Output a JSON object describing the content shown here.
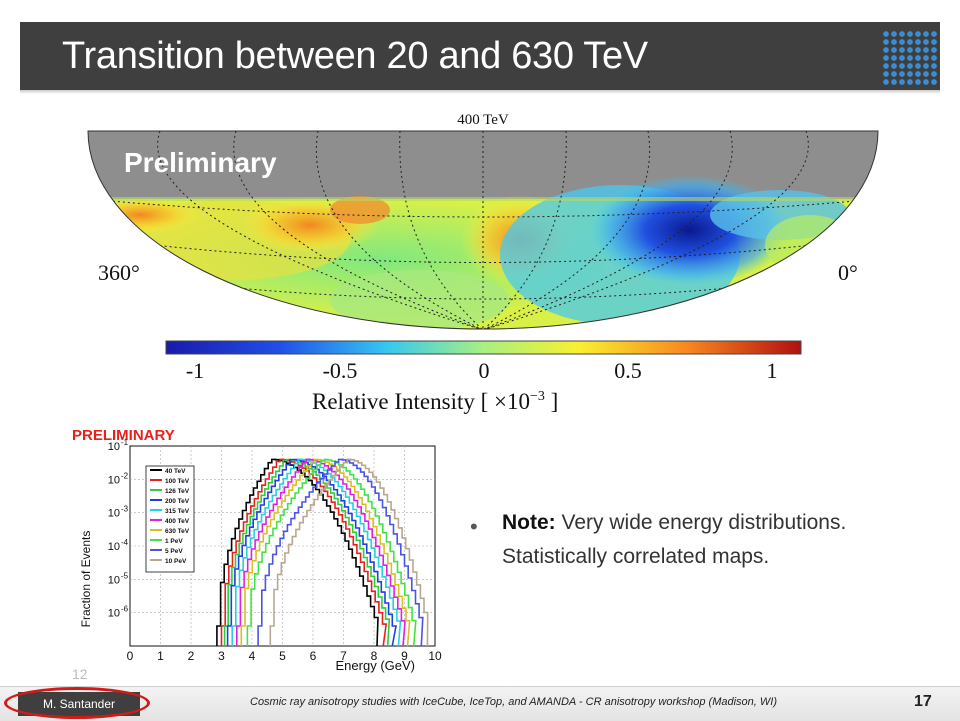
{
  "slide": {
    "title": "Transition between 20 and 630 TeV",
    "skymap": {
      "energy_label": "400 TeV",
      "watermark": "Preliminary",
      "ra_left": "360°",
      "ra_right": "0°",
      "colorbar_ticks": [
        "-1",
        "-0.5",
        "0",
        "0.5",
        "1"
      ],
      "colorbar_label": "Relative Intensity [ ×10",
      "colorbar_exponent": "−3",
      "colorbar_label_end": " ]"
    },
    "inset": {
      "preliminary": "PRELIMINARY",
      "ylabel": "Fraction of Events",
      "xlabel": "Energy (GeV)",
      "xticks": [
        "0",
        "1",
        "2",
        "3",
        "4",
        "5",
        "6",
        "7",
        "8",
        "9",
        "10"
      ],
      "yticks": [
        "10",
        "10",
        "10",
        "10",
        "10",
        "10"
      ],
      "ytick_exponents": [
        "-1",
        "-2",
        "-3",
        "-4",
        "-5",
        "-6"
      ],
      "legend": [
        "40 TeV",
        "100 TeV",
        "126 TeV",
        "200 TeV",
        "315 TeV",
        "400 TeV",
        "630 TeV",
        "1 PeV",
        "5 PeV",
        "10 PeV"
      ]
    },
    "note": {
      "bullet": "•",
      "lead": "Note:",
      "text": " Very wide energy distributions. Statistically correlated maps."
    },
    "ghost_number": "12",
    "footer": {
      "author": "M. Santander",
      "citation": "Cosmic ray anisotropy studies with IceCube, IceTop, and AMANDA - CR anisotropy workshop (Madison, WI)",
      "page": "17"
    }
  },
  "colors": {
    "title_bar": "#3f3f3f",
    "highlight_ellipse": "#d11a1a",
    "preliminary_red": "#e8211a"
  },
  "chart_data": {
    "type": "line",
    "xlabel": "Energy (GeV)",
    "ylabel": "Fraction of Events",
    "xlim": [
      0,
      10
    ],
    "ylim": [
      1e-07,
      0.1
    ],
    "yscale": "log",
    "legend_placement": "top-left",
    "series": [
      {
        "name": "40 TeV",
        "color": "#000000",
        "peak": 4.6,
        "low": 2.85,
        "high": 8.1
      },
      {
        "name": "100 TeV",
        "color": "#e8211a",
        "peak": 4.85,
        "low": 3.0,
        "high": 8.3
      },
      {
        "name": "126 TeV",
        "color": "#2ecc40",
        "peak": 5.05,
        "low": 3.1,
        "high": 8.45
      },
      {
        "name": "200 TeV",
        "color": "#1f3fe0",
        "peak": 5.25,
        "low": 3.2,
        "high": 8.6
      },
      {
        "name": "315 TeV",
        "color": "#25d0e0",
        "peak": 5.5,
        "low": 3.35,
        "high": 8.8
      },
      {
        "name": "400 TeV",
        "color": "#e020e0",
        "peak": 5.75,
        "low": 3.5,
        "high": 8.95
      },
      {
        "name": "630 TeV",
        "color": "#d8c020",
        "peak": 6.0,
        "low": 3.65,
        "high": 9.1
      },
      {
        "name": "1 PeV",
        "color": "#44e24a",
        "peak": 6.3,
        "low": 3.85,
        "high": 9.3
      },
      {
        "name": "5 PeV",
        "color": "#4a55e8",
        "peak": 6.8,
        "low": 4.2,
        "high": 9.55
      },
      {
        "name": "10 PeV",
        "color": "#b8a892",
        "peak": 7.1,
        "low": 4.6,
        "high": 9.75
      }
    ]
  }
}
